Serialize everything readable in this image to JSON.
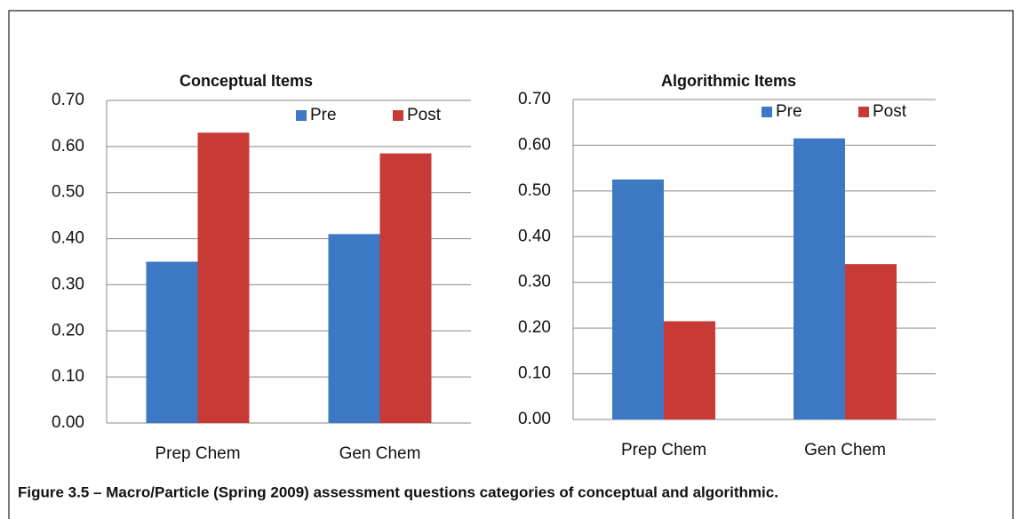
{
  "chart_data": [
    {
      "type": "bar",
      "title": "Conceptual Items",
      "categories": [
        "Prep Chem",
        "Gen Chem"
      ],
      "series": [
        {
          "name": "Pre",
          "color": "#3c78c4",
          "values": [
            0.35,
            0.41
          ]
        },
        {
          "name": "Post",
          "color": "#c83a36",
          "values": [
            0.63,
            0.585
          ]
        }
      ],
      "ylim": [
        0,
        0.7
      ],
      "yticks": [
        {
          "value": 0,
          "label": "0.00"
        },
        {
          "value": 0.1,
          "label": "0.10"
        },
        {
          "value": 0.2,
          "label": "0.20"
        },
        {
          "value": 0.3,
          "label": "0.30"
        },
        {
          "value": 0.4,
          "label": "0.40"
        },
        {
          "value": 0.5,
          "label": "0.50"
        },
        {
          "value": 0.6,
          "label": "0.60"
        },
        {
          "value": 0.7,
          "label": "0.70"
        }
      ],
      "grid": true,
      "legend": "top-right"
    },
    {
      "type": "bar",
      "title": "Algorithmic Items",
      "categories": [
        "Prep Chem",
        "Gen Chem"
      ],
      "series": [
        {
          "name": "Pre",
          "color": "#3c78c4",
          "values": [
            0.525,
            0.615
          ]
        },
        {
          "name": "Post",
          "color": "#c83a36",
          "values": [
            0.215,
            0.34
          ]
        }
      ],
      "ylim": [
        0,
        0.7
      ],
      "yticks": [
        {
          "value": 0,
          "label": "0.00"
        },
        {
          "value": 0.1,
          "label": "0.10"
        },
        {
          "value": 0.2,
          "label": "0.20"
        },
        {
          "value": 0.3,
          "label": "0.30"
        },
        {
          "value": 0.4,
          "label": "0.40"
        },
        {
          "value": 0.5,
          "label": "0.50"
        },
        {
          "value": 0.6,
          "label": "0.60"
        },
        {
          "value": 0.7,
          "label": "0.70"
        }
      ],
      "grid": true,
      "legend": "top-right"
    }
  ],
  "caption": "Figure 3.5 – Macro/Particle (Spring 2009) assessment questions categories of conceptual and algorithmic."
}
